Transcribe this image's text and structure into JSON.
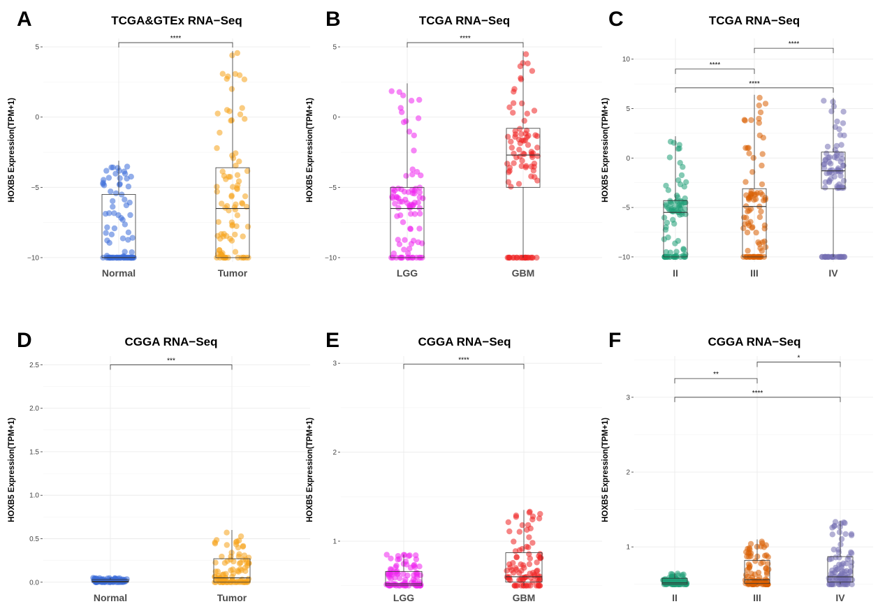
{
  "figure": {
    "panels": [
      {
        "letter": "A",
        "chart_data": {
          "type": "box",
          "title": "TCGA&GTEx RNA−Seq",
          "ylabel": "HOXB5 Expression(TPM+1)",
          "ylim": [
            -10.3,
            5.6
          ],
          "yticks": [
            -10,
            -5,
            0,
            5
          ],
          "ytick_labels": [
            "−10",
            "−5",
            "0",
            "5"
          ],
          "categories": [
            "Normal",
            "Tumor"
          ],
          "colors": [
            "#3a6bd8",
            "#f5a31a"
          ],
          "boxes": [
            {
              "category": "Normal",
              "min": -10,
              "q1": -10,
              "median": -10,
              "q3": -5.5,
              "max": -3.1
            },
            {
              "category": "Tumor",
              "min": -10,
              "q1": -10,
              "median": -6.5,
              "q3": -3.6,
              "max": 4.7
            }
          ],
          "comparisons": [
            {
              "from": "Normal",
              "to": "Tumor",
              "label": "****",
              "y": 5.3
            }
          ]
        }
      },
      {
        "letter": "B",
        "chart_data": {
          "type": "box",
          "title": "TCGA RNA−Seq",
          "ylabel": "HOXB5 Expression(TPM+1)",
          "ylim": [
            -10.3,
            5.6
          ],
          "yticks": [
            -10,
            -5,
            0,
            5
          ],
          "ytick_labels": [
            "−10",
            "−5",
            "0",
            "5"
          ],
          "categories": [
            "LGG",
            "GBM"
          ],
          "colors": [
            "#ee22ee",
            "#ee2222"
          ],
          "boxes": [
            {
              "category": "LGG",
              "min": -10,
              "q1": -10,
              "median": -6.5,
              "q3": -5.0,
              "max": 2.4
            },
            {
              "category": "GBM",
              "min": -10,
              "q1": -5.0,
              "median": -2.7,
              "q3": -0.8,
              "max": 4.7
            }
          ],
          "comparisons": [
            {
              "from": "LGG",
              "to": "GBM",
              "label": "****",
              "y": 5.3
            }
          ]
        }
      },
      {
        "letter": "C",
        "chart_data": {
          "type": "box",
          "title": "TCGA RNA−Seq",
          "ylabel": "HOXB5 Expression(TPM+1)",
          "ylim": [
            -10.5,
            12.1
          ],
          "yticks": [
            -10,
            -5,
            0,
            5,
            10
          ],
          "ytick_labels": [
            "−10",
            "−5",
            "0",
            "5",
            "10"
          ],
          "categories": [
            "II",
            "III",
            "IV"
          ],
          "colors": [
            "#1f9e77",
            "#d95f02",
            "#7570b3"
          ],
          "boxes": [
            {
              "category": "II",
              "min": -10,
              "q1": -10,
              "median": -5.5,
              "q3": -4.3,
              "max": 2.2
            },
            {
              "category": "III",
              "min": -10,
              "q1": -10,
              "median": -4.9,
              "q3": -3.1,
              "max": 6.4
            },
            {
              "category": "IV",
              "min": -10,
              "q1": -3.1,
              "median": -1.3,
              "q3": 0.6,
              "max": 6.1
            }
          ],
          "comparisons": [
            {
              "from": "III",
              "to": "IV",
              "label": "****",
              "y": 11.1
            },
            {
              "from": "II",
              "to": "III",
              "label": "****",
              "y": 9.0
            },
            {
              "from": "II",
              "to": "IV",
              "label": "****",
              "y": 7.1
            }
          ]
        }
      },
      {
        "letter": "D",
        "chart_data": {
          "type": "box",
          "title": "CGGA RNA−Seq",
          "ylabel": "HOXB5 Expression(TPM+1)",
          "ylim": [
            -0.05,
            2.6
          ],
          "yticks": [
            0,
            0.5,
            1,
            1.5,
            2,
            2.5
          ],
          "ytick_labels": [
            "0.0",
            "0.5",
            "1.0",
            "1.5",
            "2.0",
            "2.5"
          ],
          "categories": [
            "Normal",
            "Tumor"
          ],
          "colors": [
            "#3a6bd8",
            "#f5a31a"
          ],
          "boxes": [
            {
              "category": "Normal",
              "min": 0,
              "q1": 0.0,
              "median": 0.01,
              "q3": 0.03,
              "max": 0.05
            },
            {
              "category": "Tumor",
              "min": 0,
              "q1": 0.0,
              "median": 0.05,
              "q3": 0.27,
              "max": 0.6
            }
          ],
          "comparisons": [
            {
              "from": "Normal",
              "to": "Tumor",
              "label": "***",
              "y": 2.5
            }
          ]
        }
      },
      {
        "letter": "E",
        "chart_data": {
          "type": "box",
          "title": "CGGA RNA−Seq",
          "ylabel": "HOXB5 Expression(TPM+1)",
          "ylim": [
            0.49,
            3.08
          ],
          "yticks": [
            1,
            2,
            3
          ],
          "ytick_labels": [
            "1",
            "2",
            "3"
          ],
          "categories": [
            "LGG",
            "GBM"
          ],
          "colors": [
            "#ee22ee",
            "#ee2222"
          ],
          "boxes": [
            {
              "category": "LGG",
              "min": 0.5,
              "q1": 0.5,
              "median": 0.52,
              "q3": 0.66,
              "max": 0.85
            },
            {
              "category": "GBM",
              "min": 0.5,
              "q1": 0.54,
              "median": 0.6,
              "q3": 0.87,
              "max": 1.35
            }
          ],
          "comparisons": [
            {
              "from": "LGG",
              "to": "GBM",
              "label": "****",
              "y": 2.99
            }
          ]
        }
      },
      {
        "letter": "F",
        "chart_data": {
          "type": "box",
          "title": "CGGA RNA−Seq",
          "ylabel": "HOXB5 Expression(TPM+1)",
          "ylim": [
            0.47,
            3.55
          ],
          "yticks": [
            1,
            2,
            3
          ],
          "ytick_labels": [
            "1",
            "2",
            "3"
          ],
          "categories": [
            "II",
            "III",
            "IV"
          ],
          "colors": [
            "#1f9e77",
            "#d95f02",
            "#7570b3"
          ],
          "boxes": [
            {
              "category": "II",
              "min": 0.5,
              "q1": 0.5,
              "median": 0.52,
              "q3": 0.58,
              "max": 0.65
            },
            {
              "category": "III",
              "min": 0.5,
              "q1": 0.51,
              "median": 0.56,
              "q3": 0.82,
              "max": 1.1
            },
            {
              "category": "IV",
              "min": 0.5,
              "q1": 0.53,
              "median": 0.6,
              "q3": 0.87,
              "max": 1.35
            }
          ],
          "comparisons": [
            {
              "from": "III",
              "to": "IV",
              "label": "*",
              "y": 3.47
            },
            {
              "from": "II",
              "to": "III",
              "label": "**",
              "y": 3.25
            },
            {
              "from": "II",
              "to": "IV",
              "label": "****",
              "y": 3.0
            }
          ]
        }
      }
    ]
  }
}
